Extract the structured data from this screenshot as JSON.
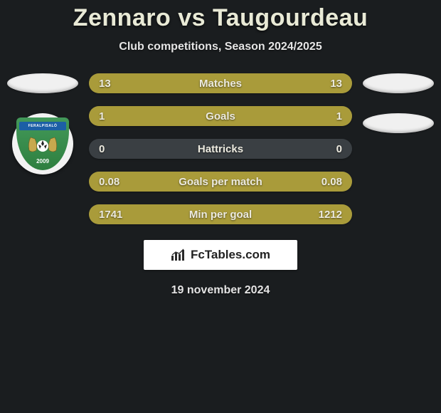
{
  "title": "Zennaro vs Taugourdeau",
  "subtitle": "Club competitions, Season 2024/2025",
  "date": "19 november 2024",
  "background_color": "#1a1d1f",
  "left": {
    "flag_color": "#f0f0f0",
    "crest": {
      "bg_top": "#43995a",
      "bg_bottom": "#2e7f3f",
      "ribbon_color": "#1c5fa6",
      "ribbon_text": "FERALPISALÒ",
      "year": "2009"
    }
  },
  "right": {
    "flag_color": "#f0f0f0",
    "second_flag_color": "#f0f0f0"
  },
  "stats": {
    "bar_bg": "#3a3f43",
    "left_color": "#a99b3a",
    "right_color": "#a99b3a",
    "label_color": "#eceadf",
    "value_color": "#eceadf",
    "rows": [
      {
        "label": "Matches",
        "left": "13",
        "right": "13",
        "left_pct": 50,
        "right_pct": 50
      },
      {
        "label": "Goals",
        "left": "1",
        "right": "1",
        "left_pct": 50,
        "right_pct": 50
      },
      {
        "label": "Hattricks",
        "left": "0",
        "right": "0",
        "left_pct": 0,
        "right_pct": 0
      },
      {
        "label": "Goals per match",
        "left": "0.08",
        "right": "0.08",
        "left_pct": 50,
        "right_pct": 50
      },
      {
        "label": "Min per goal",
        "left": "1741",
        "right": "1212",
        "left_pct": 59,
        "right_pct": 41
      }
    ]
  },
  "brand": {
    "text": "FcTables.com",
    "box_bg": "#ffffff",
    "icon_color": "#2a2a2a"
  }
}
